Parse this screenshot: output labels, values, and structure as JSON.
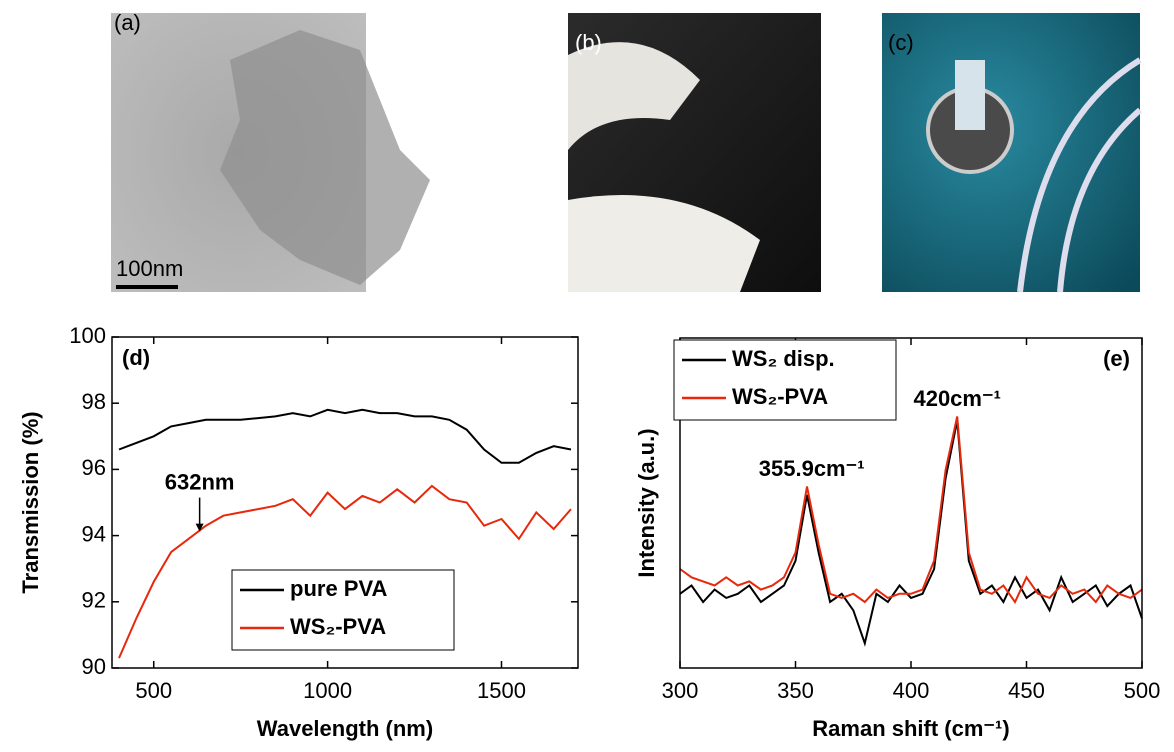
{
  "panels": [
    {
      "label": "(a)",
      "scale_bar": "100nm"
    },
    {
      "label": "(b)"
    },
    {
      "label": "(c)"
    }
  ],
  "chart_data": [
    {
      "type": "line",
      "label": "(d)",
      "xlabel": "Wavelength (nm)",
      "ylabel": "Transmission (%)",
      "x": [
        400,
        450,
        500,
        550,
        600,
        650,
        700,
        750,
        800,
        850,
        900,
        950,
        1000,
        1050,
        1100,
        1150,
        1200,
        1250,
        1300,
        1350,
        1400,
        1450,
        1500,
        1550,
        1600,
        1650,
        1700
      ],
      "series": [
        {
          "name": "pure PVA",
          "color": "#000000",
          "values": [
            96.6,
            96.8,
            97.0,
            97.3,
            97.4,
            97.5,
            97.5,
            97.5,
            97.55,
            97.6,
            97.7,
            97.6,
            97.8,
            97.7,
            97.8,
            97.7,
            97.7,
            97.6,
            97.6,
            97.5,
            97.2,
            96.6,
            96.2,
            96.2,
            96.5,
            96.7,
            96.6
          ]
        },
        {
          "name": "WS₂-PVA",
          "color": "#e8280c",
          "values": [
            90.3,
            91.5,
            92.6,
            93.5,
            93.9,
            94.3,
            94.6,
            94.7,
            94.8,
            94.9,
            95.1,
            94.6,
            95.3,
            94.8,
            95.2,
            95.0,
            95.4,
            95.0,
            95.5,
            95.1,
            95.0,
            94.3,
            94.5,
            93.9,
            94.7,
            94.2,
            94.8
          ]
        }
      ],
      "xlim": [
        380,
        1720
      ],
      "xticks": [
        500,
        1000,
        1500
      ],
      "ylim": [
        90,
        100
      ],
      "yticks": [
        90,
        92,
        94,
        96,
        98,
        100
      ],
      "legend": "lower center",
      "annotations": [
        {
          "text": "632nm",
          "x": 632,
          "y": 94.0
        }
      ]
    },
    {
      "type": "line",
      "label": "(e)",
      "xlabel": "Raman shift (cm⁻¹)",
      "ylabel": "Intensity (a.u.)",
      "x": [
        300,
        305,
        310,
        315,
        320,
        325,
        330,
        335,
        340,
        345,
        350,
        355,
        360,
        365,
        370,
        375,
        380,
        385,
        390,
        395,
        400,
        405,
        410,
        415,
        420,
        425,
        430,
        435,
        440,
        445,
        450,
        455,
        460,
        465,
        470,
        475,
        480,
        485,
        490,
        495,
        500
      ],
      "series": [
        {
          "name": "WS₂ disp.",
          "color": "#000000",
          "values": [
            0.9,
            1.0,
            0.8,
            0.95,
            0.85,
            0.9,
            1.0,
            0.8,
            0.9,
            1.0,
            1.3,
            2.1,
            1.4,
            0.8,
            0.9,
            0.7,
            0.3,
            0.9,
            0.8,
            1.0,
            0.85,
            0.9,
            1.2,
            2.3,
            3.0,
            1.3,
            0.9,
            1.0,
            0.8,
            1.1,
            0.85,
            0.95,
            0.7,
            1.1,
            0.8,
            0.9,
            1.0,
            0.75,
            0.9,
            1.0,
            0.6
          ]
        },
        {
          "name": "WS₂-PVA",
          "color": "#e8280c",
          "values": [
            1.2,
            1.1,
            1.05,
            1.0,
            1.1,
            1.0,
            1.05,
            0.95,
            1.0,
            1.1,
            1.4,
            2.2,
            1.5,
            0.9,
            0.85,
            0.9,
            0.8,
            0.95,
            0.85,
            0.9,
            0.9,
            0.95,
            1.3,
            2.4,
            3.05,
            1.4,
            0.95,
            0.9,
            1.0,
            0.8,
            1.1,
            0.9,
            0.85,
            1.0,
            0.9,
            0.95,
            0.8,
            1.0,
            0.9,
            0.85,
            0.95
          ]
        }
      ],
      "xlim": [
        300,
        500
      ],
      "xticks": [
        300,
        350,
        400,
        450,
        500
      ],
      "ylim": [
        0,
        4
      ],
      "legend": "upper left",
      "annotations": [
        {
          "text": "355.9cm⁻¹",
          "x": 357,
          "y": 2.3
        },
        {
          "text": "420cm⁻¹",
          "x": 420,
          "y": 3.15
        }
      ]
    }
  ]
}
